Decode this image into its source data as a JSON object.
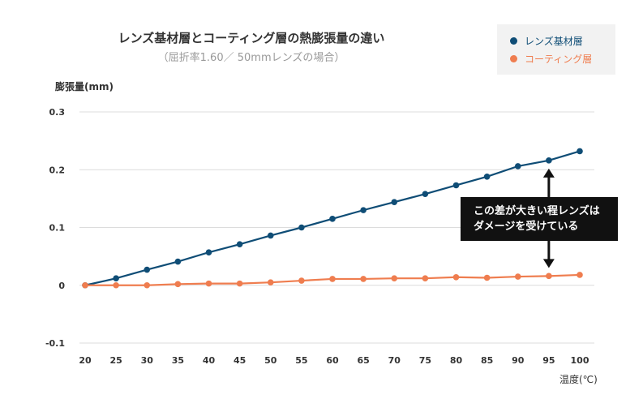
{
  "chart_data": {
    "type": "line",
    "title": "レンズ基材層とコーティング層の熱膨張量の違い",
    "subtitle": "（屈折率1.60／ 50mmレンズの場合）",
    "xlabel": "温度(℃)",
    "ylabel": "膨張量(mm)",
    "x": [
      20,
      25,
      30,
      35,
      40,
      45,
      50,
      55,
      60,
      65,
      70,
      75,
      80,
      85,
      90,
      95,
      100
    ],
    "ylim": [
      -0.1,
      0.3
    ],
    "yticks": [
      -0.1,
      0,
      0.1,
      0.2,
      0.3
    ],
    "ytick_labels": [
      "-0.1",
      "0",
      "0.1",
      "0.2",
      "0.3"
    ],
    "grid": true,
    "legend_position": "top-right",
    "series": [
      {
        "name": "レンズ基材層",
        "color": "#0f4d76",
        "values": [
          0.0,
          0.012,
          0.027,
          0.041,
          0.057,
          0.071,
          0.086,
          0.1,
          0.115,
          0.13,
          0.144,
          0.158,
          0.173,
          0.188,
          0.206,
          0.216,
          0.232
        ]
      },
      {
        "name": "コーティング層",
        "color": "#ef7d4f",
        "values": [
          0.0,
          0.0,
          0.0,
          0.002,
          0.003,
          0.003,
          0.005,
          0.008,
          0.011,
          0.011,
          0.012,
          0.012,
          0.014,
          0.013,
          0.015,
          0.016,
          0.018
        ]
      }
    ],
    "annotation": {
      "lines": [
        "この差が大きい程レンズは",
        "ダメージを受けている"
      ],
      "at_x": 95
    }
  }
}
